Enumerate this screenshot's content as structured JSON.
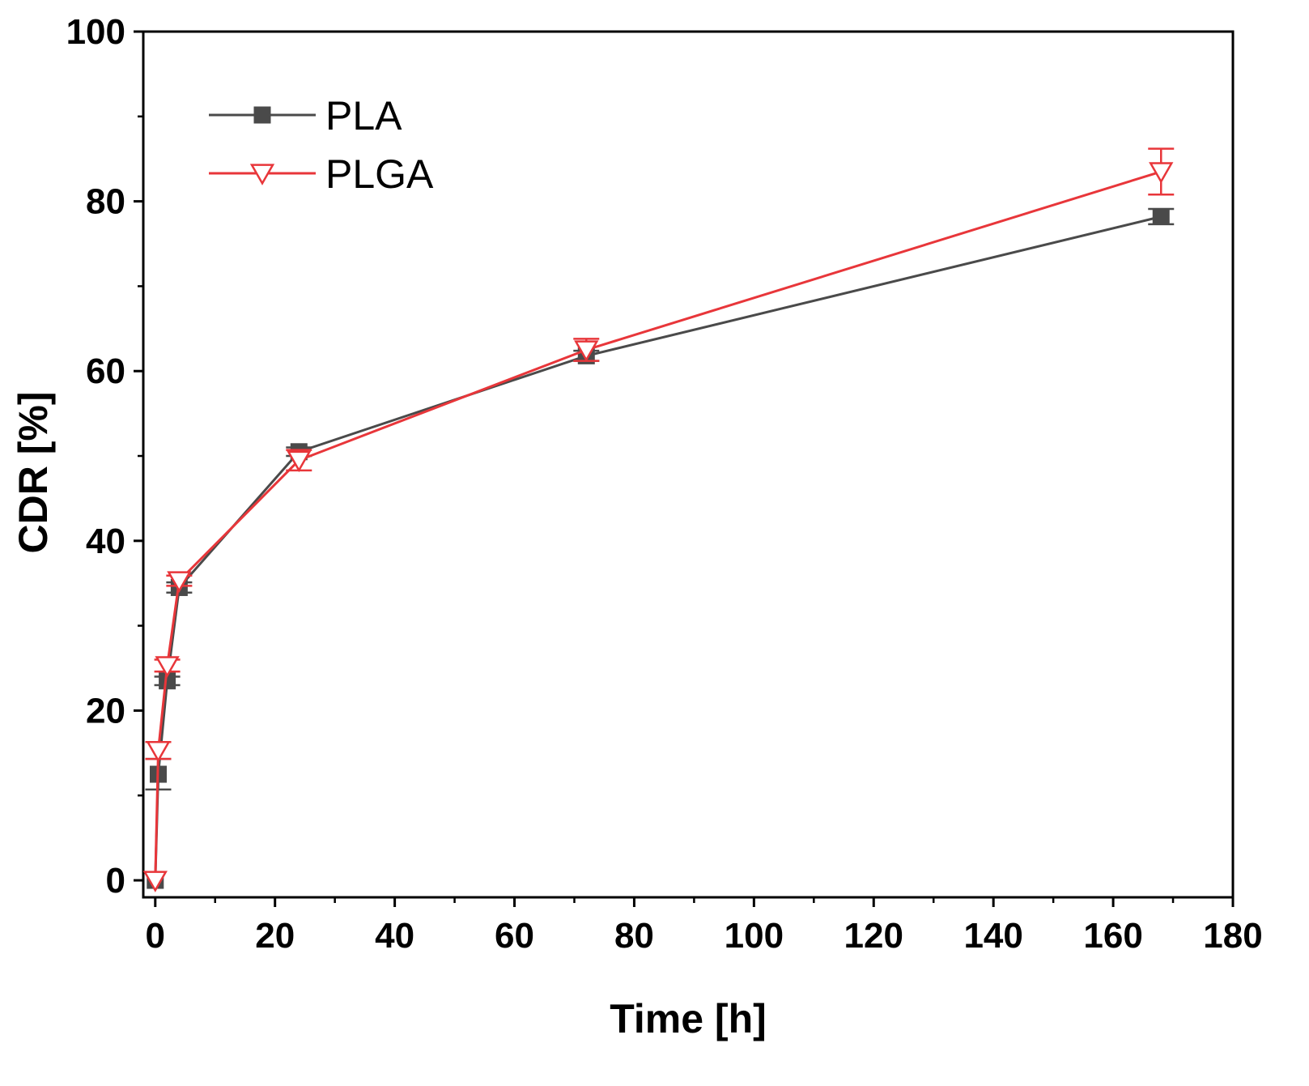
{
  "chart_data": {
    "type": "line",
    "title": "",
    "xlabel": "Time [h]",
    "ylabel": "CDR [%]",
    "xlim": [
      -2,
      180
    ],
    "ylim": [
      -2,
      100
    ],
    "x_ticks": [
      0,
      20,
      40,
      60,
      80,
      100,
      120,
      140,
      160,
      180
    ],
    "y_ticks": [
      0,
      20,
      40,
      60,
      80,
      100
    ],
    "x_minor_step": 10,
    "y_minor_step": 10,
    "grid": false,
    "legend_position": "top-left",
    "series": [
      {
        "name": "PLA",
        "color": "#4a4a4a",
        "marker": "filled-square",
        "x": [
          0,
          0.5,
          2,
          4,
          24,
          72,
          168
        ],
        "y": [
          0,
          12.5,
          23.5,
          34.5,
          50.5,
          61.8,
          78.2
        ],
        "err": [
          0,
          1.8,
          0.5,
          0.6,
          0.5,
          0.6,
          0.9
        ]
      },
      {
        "name": "PLGA",
        "color": "#e8363a",
        "marker": "open-down-triangle",
        "x": [
          0,
          0.5,
          2,
          4,
          24,
          72,
          168
        ],
        "y": [
          0,
          15.3,
          25.3,
          35.3,
          49.5,
          62.5,
          83.5
        ],
        "err": [
          0,
          1.0,
          0.7,
          0.6,
          1.2,
          1.3,
          2.7
        ]
      }
    ]
  }
}
